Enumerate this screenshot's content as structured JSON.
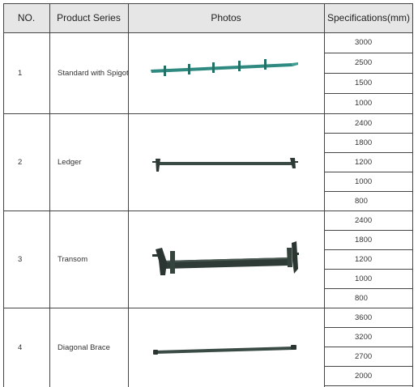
{
  "header": {
    "no": "NO.",
    "series": "Product Series",
    "photos": "Photos",
    "specs": "Specifications(mm)"
  },
  "rows": [
    {
      "no": "1",
      "name": "Standard with Spigot",
      "photo": "standard-spigot-photo",
      "specs": [
        "3000",
        "2500",
        "1500",
        "1000"
      ]
    },
    {
      "no": "2",
      "name": "Ledger",
      "photo": "ledger-photo",
      "specs": [
        "2400",
        "1800",
        "1200",
        "1000",
        "800"
      ]
    },
    {
      "no": "3",
      "name": "Transom",
      "photo": "transom-photo",
      "specs": [
        "2400",
        "1800",
        "1200",
        "1000",
        "800"
      ]
    },
    {
      "no": "4",
      "name": "Diagonal Brace",
      "photo": "diagonal-brace-photo",
      "specs": [
        "3600",
        "3200",
        "2700",
        "2000"
      ]
    }
  ],
  "colors": {
    "header_bg": "#e6e6e6",
    "border": "#444444",
    "standard": "#2e8a80",
    "steel": "#3a4a44"
  }
}
